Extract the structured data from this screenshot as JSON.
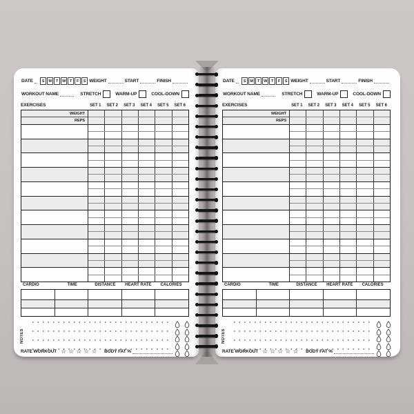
{
  "colors": {
    "background": "#c7c1bf",
    "page": "#fdfdfc",
    "row_shade": "#ececec",
    "table_line": "#1a1a1a",
    "spiral": "#161616"
  },
  "page": {
    "header": {
      "date_label": "DATE",
      "days": [
        "S",
        "M",
        "T",
        "W",
        "T",
        "F",
        "S"
      ],
      "weight_label": "WEIGHT",
      "start_label": "START",
      "finish_label": "FINISH",
      "workout_name_label": "WORKOUT NAME",
      "checkboxes": [
        "STRETCH",
        "WARM-UP",
        "COOL-DOWN"
      ]
    },
    "exercise_table": {
      "exercises_label": "EXERCISES",
      "set_headers": [
        "SET 1",
        "SET 2",
        "SET 3",
        "SET 4",
        "SET 5",
        "SET 6"
      ],
      "row_labels": [
        "WEIGHT",
        "REPS"
      ],
      "exercise_block_count": 12
    },
    "cardio": {
      "headers": [
        "CARDIO",
        "TIME",
        "DISTANCE",
        "HEART RATE",
        "CALORIES"
      ],
      "row_count": 3
    },
    "notes": {
      "label": "NOTES",
      "line_count": 4,
      "water_drop_rows": 5,
      "water_drop_cols": 2
    },
    "footer": {
      "rate_label": "RATE WORKOUT",
      "star_glyph": "☆",
      "star_count": 5,
      "bodyfat_label": "BODY FAT %"
    }
  },
  "binding": {
    "loop_count": 27
  }
}
